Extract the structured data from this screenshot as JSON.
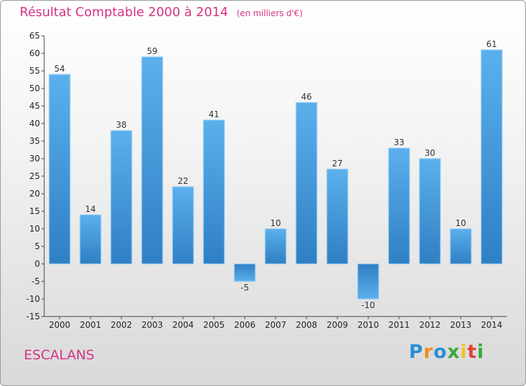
{
  "chart_data": {
    "type": "bar",
    "title": "Résultat Comptable 2000 à 2014",
    "subtitle": "(en milliers d'€)",
    "categories": [
      "2000",
      "2001",
      "2002",
      "2003",
      "2004",
      "2005",
      "2006",
      "2007",
      "2008",
      "2009",
      "2010",
      "2011",
      "2012",
      "2013",
      "2014"
    ],
    "values": [
      54,
      14,
      38,
      59,
      22,
      41,
      -5,
      10,
      46,
      27,
      -10,
      33,
      30,
      10,
      61
    ],
    "ylim": [
      -15,
      65
    ],
    "yticks": [
      -15,
      -10,
      -5,
      0,
      5,
      10,
      15,
      20,
      25,
      30,
      35,
      40,
      45,
      50,
      55,
      60,
      65
    ],
    "xlabel": "",
    "ylabel": "",
    "grid": false,
    "bar_color": "#4a9fe0",
    "bar_color_dark": "#2e7dc0"
  },
  "commune": "ESCALANS",
  "brand": {
    "letters": [
      "P",
      "r",
      "o",
      "x",
      "i",
      "t",
      "i"
    ],
    "colors": [
      "#2a8fd6",
      "#f28c1c",
      "#2a8fd6",
      "#3aa63a",
      "#f2c41c",
      "#e0423a",
      "#3aa63a"
    ]
  },
  "title_color": "#d63384"
}
